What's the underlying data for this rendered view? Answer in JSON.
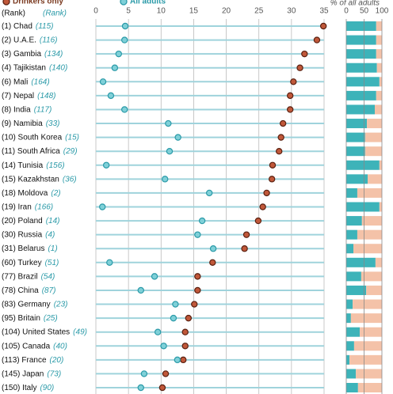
{
  "chart_data": [
    {
      "type": "dot",
      "rank_header": "(Rank)",
      "rank_header_2": "(Rank)",
      "categories": [
        "(1) Chad",
        "(2) U.A.E.",
        "(3) Gambia",
        "(4) Tajikistan",
        "(6) Mali",
        "(7) Nepal",
        "(8) India",
        "(9) Namibia",
        "(10) South Korea",
        "(11) South Africa",
        "(14) Tunisia",
        "(15) Kazakhstan",
        "(18) Moldova",
        "(19) Iran",
        "(20) Poland",
        "(30) Russia",
        "(31) Belarus",
        "(60) Turkey",
        "(77) Brazil",
        "(78) China",
        "(83) Germany",
        "(95) Britain",
        "(104) United States",
        "(105) Canada",
        "(113) France",
        "(145) Japan",
        "(150) Italy"
      ],
      "ranks_2": [
        "(115)",
        "(116)",
        "(134)",
        "(140)",
        "(164)",
        "(148)",
        "(117)",
        "(33)",
        "(15)",
        "(29)",
        "(156)",
        "(36)",
        "(2)",
        "(166)",
        "(14)",
        "(4)",
        "(1)",
        "(51)",
        "(54)",
        "(87)",
        "(23)",
        "(25)",
        "(49)",
        "(40)",
        "(20)",
        "(73)",
        "(90)"
      ],
      "series": [
        {
          "name": "Drinkers only",
          "color": "#c0583a",
          "values": [
            34.9,
            33.9,
            32.0,
            31.3,
            30.3,
            29.8,
            29.8,
            28.7,
            28.4,
            28.1,
            27.1,
            27.0,
            26.2,
            25.6,
            24.9,
            23.1,
            22.8,
            17.9,
            15.6,
            15.6,
            15.1,
            14.2,
            13.7,
            13.7,
            13.4,
            10.7,
            10.2
          ]
        },
        {
          "name": "All adults",
          "color": "#7fd0d8",
          "values": [
            4.5,
            4.4,
            3.5,
            2.9,
            1.1,
            2.3,
            4.4,
            11.1,
            12.6,
            11.3,
            1.6,
            10.6,
            17.4,
            1.0,
            16.3,
            15.6,
            18.0,
            2.1,
            9.0,
            6.9,
            12.2,
            11.9,
            9.5,
            10.4,
            12.5,
            7.4,
            6.9
          ]
        }
      ],
      "xlim": [
        0,
        35
      ],
      "xticks": [
        0,
        5,
        10,
        15,
        20,
        25,
        30,
        35
      ],
      "grid": true
    },
    {
      "type": "stacked-bar",
      "title": "% of all adults",
      "series": [
        {
          "color": "#3db3b9",
          "values": [
            84,
            84,
            84,
            86,
            93,
            84,
            80,
            58,
            53,
            53,
            93,
            60,
            31,
            93,
            44,
            31,
            20,
            82,
            42,
            56,
            18,
            13,
            38,
            22,
            9,
            27,
            33
          ]
        },
        {
          "color": "#f4c2a8",
          "values": [
            16,
            16,
            16,
            14,
            7,
            16,
            20,
            42,
            47,
            47,
            7,
            40,
            69,
            7,
            56,
            69,
            80,
            18,
            58,
            44,
            82,
            87,
            62,
            78,
            91,
            73,
            67
          ]
        }
      ],
      "xlim": [
        0,
        100
      ],
      "xticks": [
        0,
        50,
        100
      ],
      "grid": true
    }
  ]
}
